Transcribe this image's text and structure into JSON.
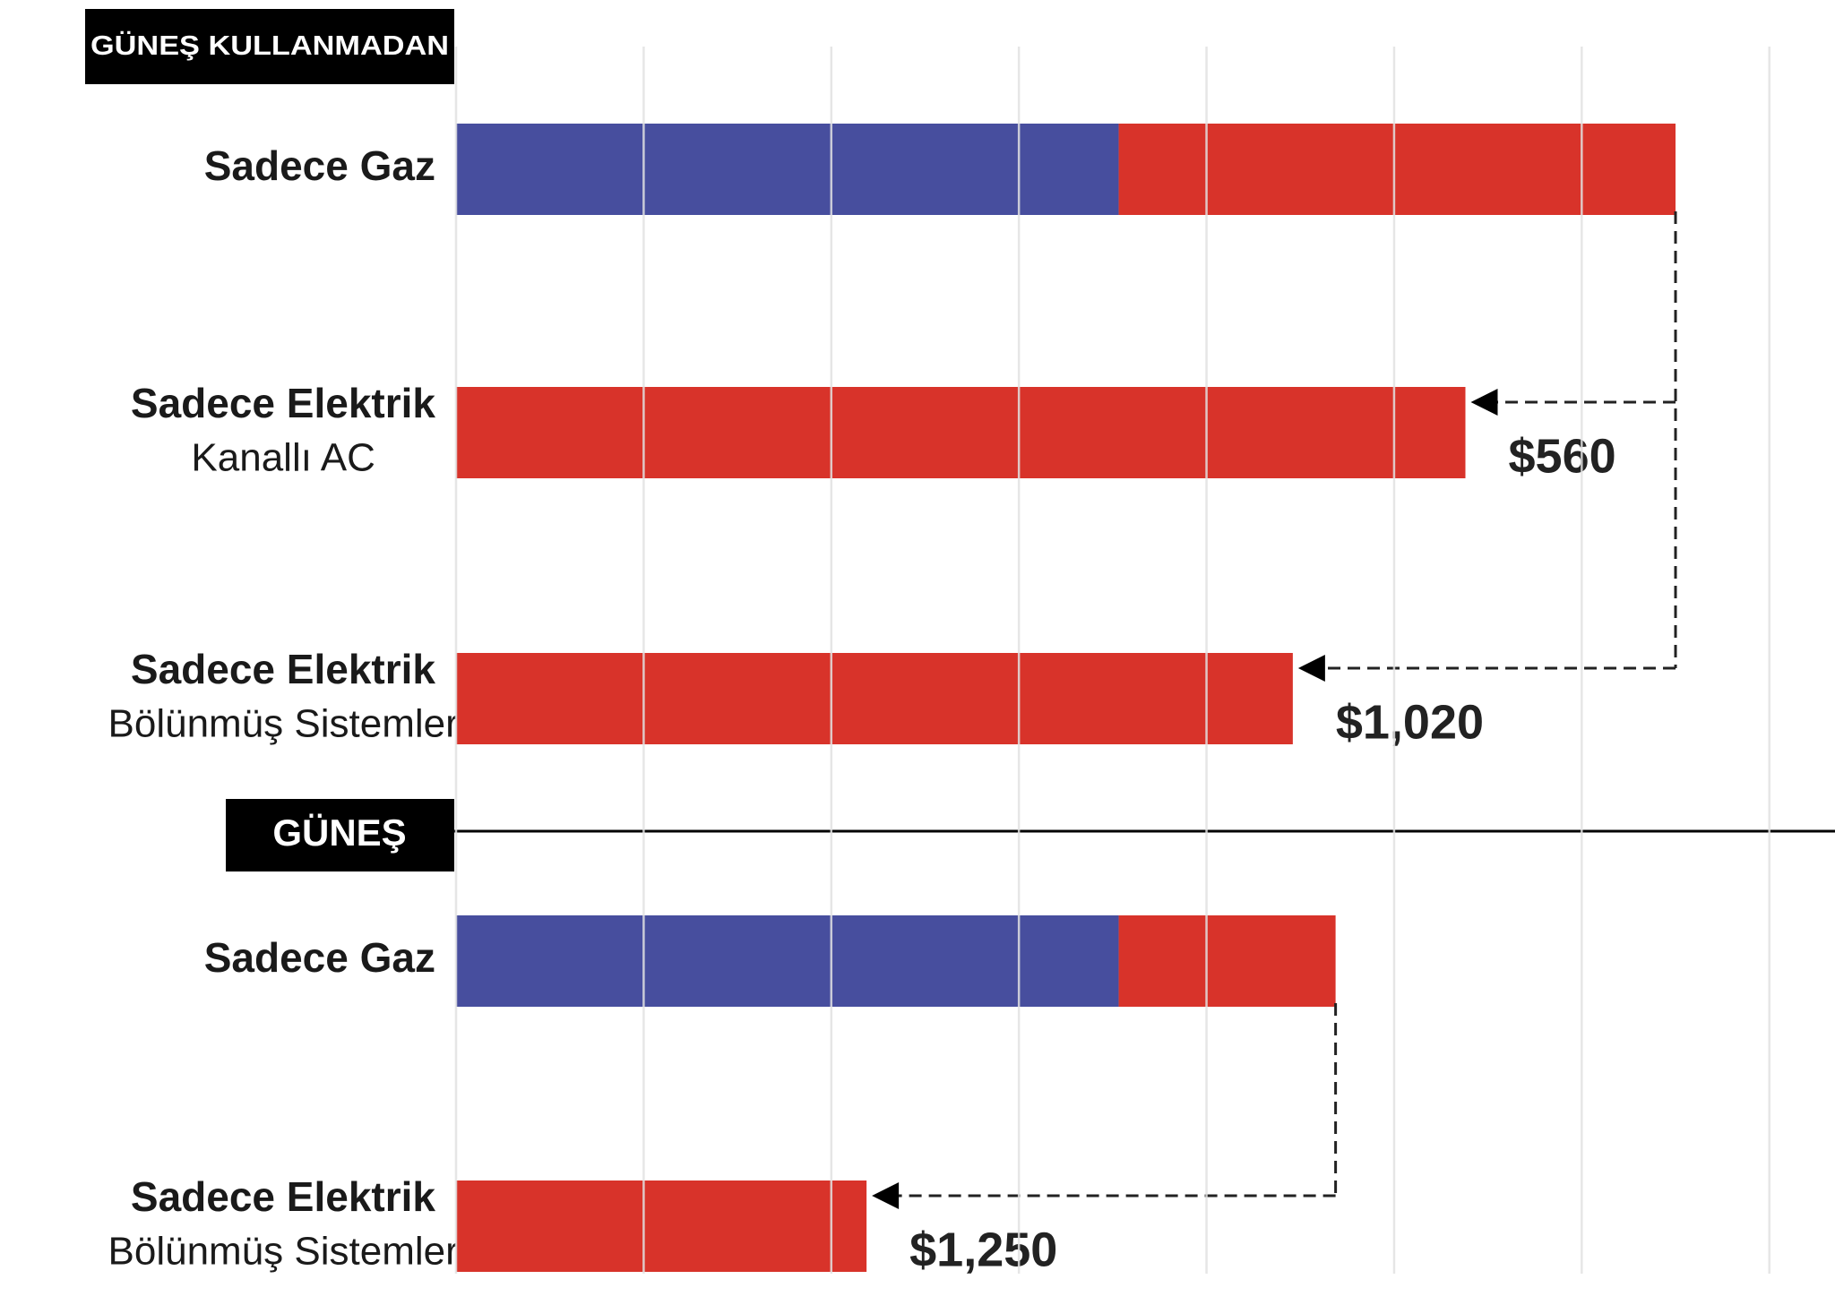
{
  "chart_data": {
    "type": "bar",
    "orientation": "horizontal",
    "stacked": true,
    "xlim": [
      0,
      3675
    ],
    "xticks": [
      0,
      500,
      1000,
      1500,
      2000,
      2500,
      3000,
      3500
    ],
    "grid": true,
    "groups": [
      {
        "label": "GÜNEŞ KULLANMADAN",
        "categories": [
          [
            "Sadece Gaz"
          ],
          [
            "Sadece Elektrik",
            "Kanallı AC"
          ],
          [
            "Sadece Elektrik",
            "Bölünmüş Sistemler"
          ]
        ],
        "series": [
          {
            "color": "#474e9e",
            "values": [
              1766,
              null,
              null
            ]
          },
          {
            "color": "#d8332a",
            "values": [
              1484,
              2690,
              2230
            ]
          }
        ],
        "savings": [
          {
            "value": 560,
            "label": "$560"
          },
          {
            "value": 1020,
            "label": "$1,020"
          }
        ]
      },
      {
        "label": "GÜNEŞ",
        "categories": [
          [
            "Sadece Gaz"
          ],
          [
            "Sadece Elektrik",
            "Bölünmüş Sistemler"
          ]
        ],
        "series": [
          {
            "color": "#474e9e",
            "values": [
              1766,
              null
            ]
          },
          {
            "color": "#d8332a",
            "values": [
              578,
              1094
            ]
          }
        ],
        "savings": [
          {
            "value": 1250,
            "label": "$1,250"
          }
        ]
      }
    ]
  }
}
